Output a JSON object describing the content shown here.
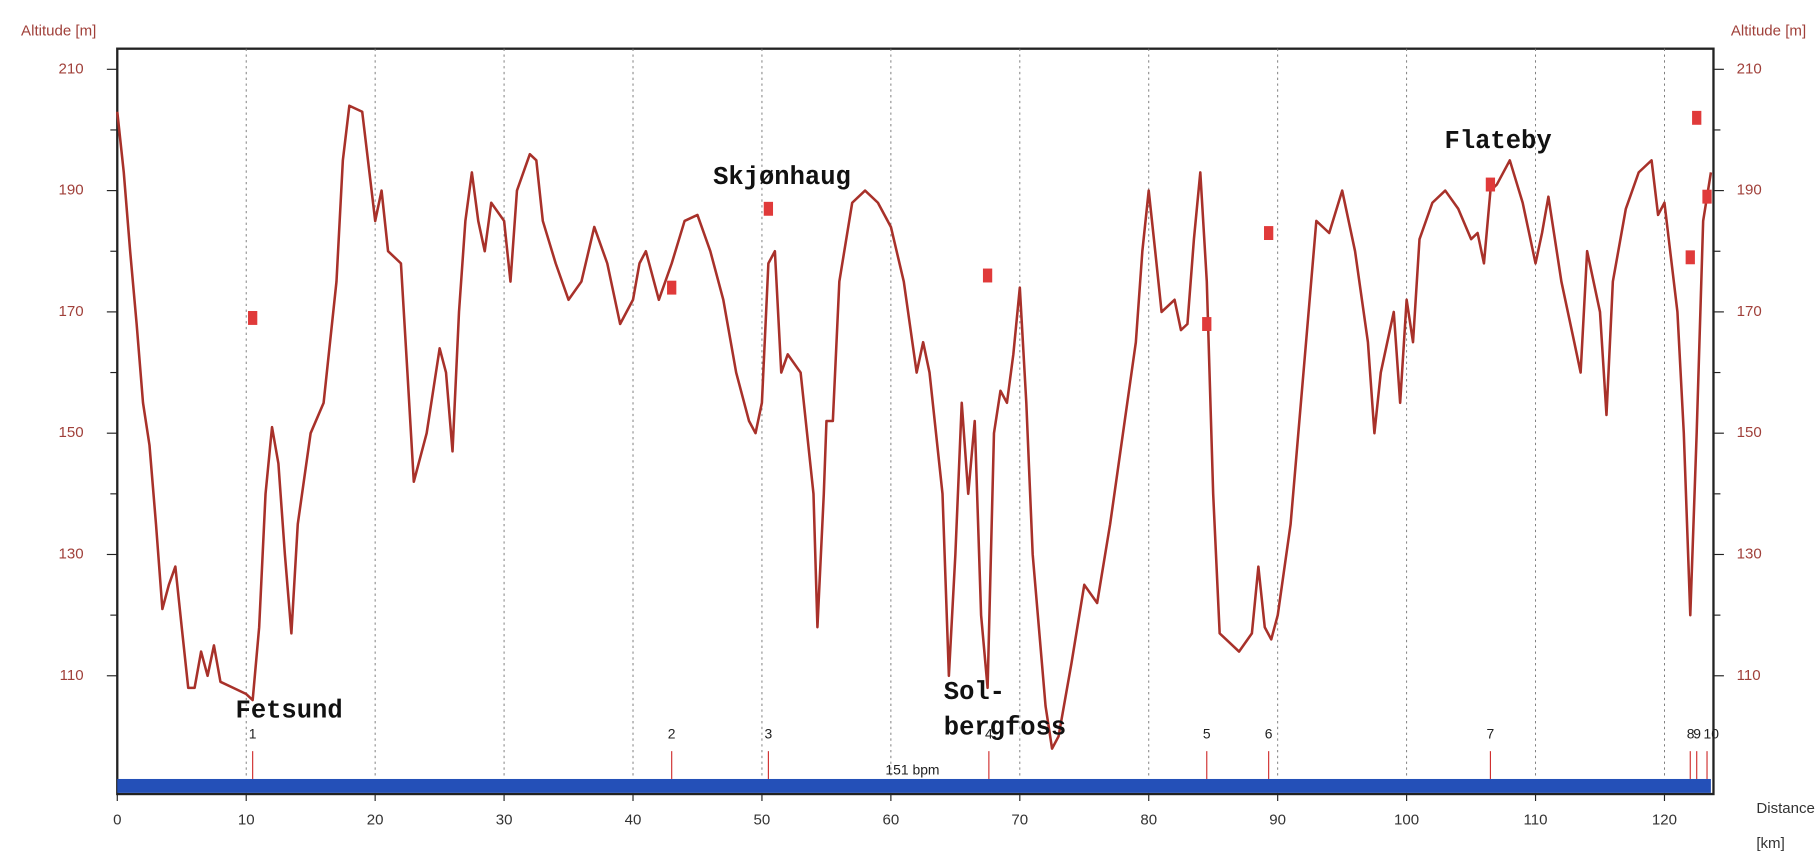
{
  "chart_data": {
    "type": "line",
    "y_label": "Altitude [m]",
    "y2_label": "Altitude [m]",
    "x_label": "Distance",
    "x_unit": "[km]",
    "color": "#a8312a",
    "x": [
      0,
      0.5,
      1,
      1.5,
      2,
      2.5,
      3,
      3.5,
      4,
      4.5,
      5,
      5.5,
      6,
      6.5,
      7,
      7.5,
      8,
      9,
      10,
      10.5,
      11,
      11.5,
      12,
      12.5,
      13,
      13.5,
      14,
      15,
      16,
      17,
      17.5,
      18,
      19,
      20,
      20.5,
      21,
      22,
      22.5,
      23,
      24,
      25,
      25.5,
      26,
      26.5,
      27,
      27.5,
      28,
      28.5,
      29,
      30,
      30.5,
      31,
      32,
      32.5,
      33,
      34,
      35,
      36,
      37,
      38,
      39,
      40,
      40.5,
      41,
      42,
      43,
      44,
      45,
      46,
      47,
      48,
      49,
      49.5,
      50,
      50.5,
      51,
      51.5,
      52,
      53,
      54,
      54.3,
      54.8,
      55,
      55.5,
      56,
      57,
      58,
      59,
      60,
      61,
      62,
      62.5,
      63,
      64,
      64.5,
      65,
      65.5,
      66,
      66.5,
      67,
      67.5,
      68,
      68.5,
      69,
      69.5,
      70,
      70.5,
      71,
      72,
      72.5,
      73,
      74,
      75,
      76,
      77,
      78,
      79,
      79.5,
      80,
      80.5,
      81,
      82,
      82.5,
      83,
      83.5,
      84,
      84.5,
      85,
      85.5,
      86,
      87,
      88,
      88.5,
      89,
      89.5,
      90,
      91,
      92,
      93,
      94,
      95,
      96,
      97,
      97.5,
      98,
      99,
      99.5,
      100,
      100.5,
      101,
      102,
      103,
      104,
      105,
      105.5,
      106,
      106.5,
      107,
      108,
      109,
      110,
      110.5,
      111,
      112,
      113,
      113.5,
      114,
      115,
      115.5,
      116,
      117,
      118,
      119,
      119.5,
      120,
      121,
      121.5,
      122,
      122.5,
      123,
      123.6
    ],
    "values": [
      203,
      193,
      180,
      168,
      155,
      148,
      135,
      121,
      125,
      128,
      118,
      108,
      108,
      114,
      110,
      115,
      109,
      108,
      107,
      106,
      118,
      140,
      151,
      145,
      130,
      117,
      135,
      150,
      155,
      175,
      195,
      204,
      203,
      185,
      190,
      180,
      178,
      160,
      142,
      150,
      164,
      160,
      147,
      170,
      185,
      193,
      185,
      180,
      188,
      185,
      175,
      190,
      196,
      195,
      185,
      178,
      172,
      175,
      184,
      178,
      168,
      172,
      178,
      180,
      172,
      178,
      185,
      186,
      180,
      172,
      160,
      152,
      150,
      155,
      178,
      180,
      160,
      163,
      160,
      140,
      118,
      140,
      152,
      152,
      175,
      188,
      190,
      188,
      184,
      175,
      160,
      165,
      160,
      140,
      110,
      130,
      155,
      140,
      152,
      120,
      108,
      150,
      157,
      155,
      163,
      174,
      155,
      130,
      105,
      98,
      100,
      112,
      125,
      122,
      135,
      150,
      165,
      180,
      190,
      180,
      170,
      172,
      167,
      168,
      182,
      193,
      175,
      140,
      117,
      116,
      114,
      117,
      128,
      118,
      116,
      120,
      135,
      160,
      185,
      183,
      190,
      180,
      165,
      150,
      160,
      170,
      155,
      172,
      165,
      182,
      188,
      190,
      187,
      182,
      183,
      178,
      190,
      191,
      195,
      188,
      178,
      183,
      189,
      175,
      165,
      160,
      180,
      170,
      153,
      175,
      187,
      193,
      195,
      186,
      188,
      170,
      150,
      120,
      150,
      185,
      193
    ],
    "xlim": [
      0,
      123.8
    ],
    "xticks": [
      0,
      10,
      20,
      30,
      40,
      50,
      60,
      70,
      80,
      90,
      100,
      110,
      120
    ],
    "ylim": [
      90.5,
      213.4
    ],
    "yticks": [
      110,
      130,
      150,
      170,
      190,
      210
    ],
    "y2lim": [
      90.5,
      213.4
    ],
    "y2ticks": [
      110,
      130,
      150,
      170,
      190,
      210
    ],
    "yminor_ticks": [
      120,
      140,
      160,
      180,
      200
    ],
    "grid": true,
    "waypoints": {
      "color": "#e03a3a",
      "x": [
        10.5,
        43,
        50.5,
        67.5,
        84.5,
        89.3,
        106.5,
        122,
        122.5,
        123.3
      ],
      "values": [
        169,
        174,
        187,
        176,
        168,
        183,
        191,
        179,
        202,
        189
      ]
    },
    "laps": {
      "color": "#d03030",
      "x": [
        10.5,
        43,
        50.5,
        67.6,
        84.5,
        89.3,
        106.5,
        122,
        122.5,
        123.3
      ],
      "labels": [
        "1",
        "2",
        "3",
        "4",
        "5",
        "6",
        "7",
        "8",
        "9",
        "10"
      ]
    },
    "hr_bar": {
      "label": "151 bpm",
      "color": "#2450b8"
    },
    "annotations": [
      "Fetsund",
      "Skjønhaug",
      "Sol-",
      "bergfoss",
      "Flateby"
    ]
  }
}
